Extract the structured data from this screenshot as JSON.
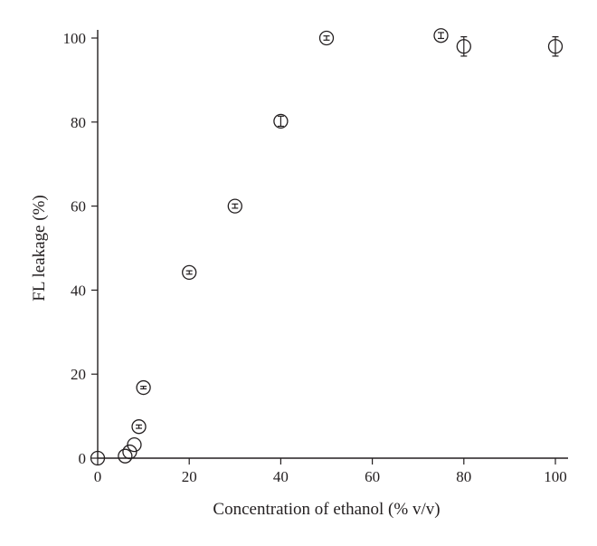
{
  "chart_data": {
    "type": "scatter",
    "title": "",
    "xlabel": "Concentration of ethanol (% v/v)",
    "ylabel": "FL leakage (%)",
    "xlim": [
      0,
      100
    ],
    "ylim": [
      0,
      100
    ],
    "xticks": [
      0,
      20,
      40,
      60,
      80,
      100
    ],
    "yticks": [
      0,
      20,
      40,
      60,
      80,
      100
    ],
    "grid": false,
    "legend": "none",
    "color": "#231f20",
    "series": [
      {
        "points": [
          {
            "x": 0,
            "y": 0,
            "err": 0
          },
          {
            "x": 6,
            "y": 0.5,
            "err": 0
          },
          {
            "x": 7,
            "y": 1.5,
            "err": 0
          },
          {
            "x": 8,
            "y": 3.2,
            "err": 0
          },
          {
            "x": 9,
            "y": 7.5,
            "err": 0.4
          },
          {
            "x": 10,
            "y": 16.8,
            "err": 0.3
          },
          {
            "x": 20,
            "y": 44.2,
            "err": 0.4
          },
          {
            "x": 30,
            "y": 60,
            "err": 0.5
          },
          {
            "x": 40,
            "y": 80.2,
            "err": 1.2
          },
          {
            "x": 50,
            "y": 100,
            "err": 0.5
          },
          {
            "x": 75,
            "y": 100.6,
            "err": 0.7
          },
          {
            "x": 80,
            "y": 98,
            "err": 2.3
          },
          {
            "x": 100,
            "y": 98,
            "err": 2.3
          }
        ]
      }
    ]
  }
}
